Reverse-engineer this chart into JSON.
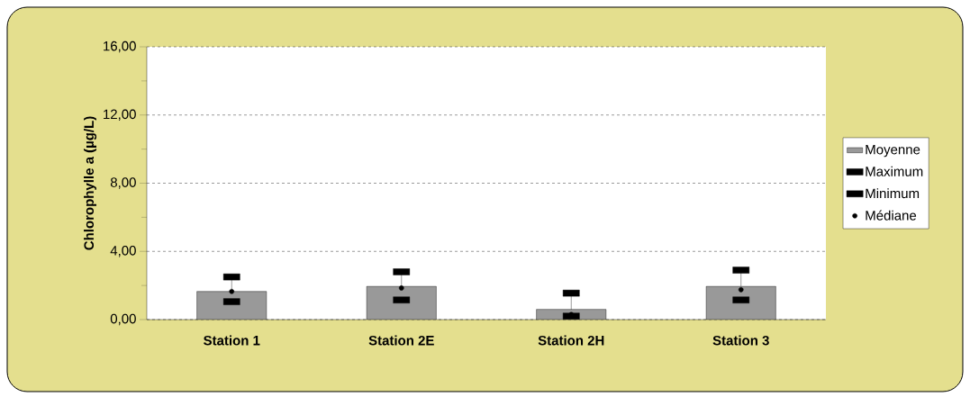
{
  "chart_data": {
    "type": "bar",
    "ylabel": "Chlorophylle a (µg/L)",
    "categories": [
      "Station 1",
      "Station 2E",
      "Station 2H",
      "Station 3"
    ],
    "series": [
      {
        "name": "Moyenne",
        "color": "#999999",
        "values": [
          1.65,
          1.95,
          0.6,
          1.95
        ]
      },
      {
        "name": "Maximum",
        "type": "scatter",
        "marker": "square",
        "color": "#000000",
        "values": [
          2.5,
          2.8,
          1.55,
          2.9
        ]
      },
      {
        "name": "Minimum",
        "type": "scatter",
        "marker": "square",
        "color": "#000000",
        "values": [
          1.05,
          1.15,
          0.2,
          1.15
        ]
      },
      {
        "name": "Médiane",
        "type": "scatter",
        "marker": "circle",
        "color": "#000000",
        "values": [
          1.65,
          1.85,
          0.3,
          1.75
        ]
      }
    ],
    "ylim": [
      0,
      16
    ],
    "yticks": [
      {
        "value": 0,
        "label": "0,00"
      },
      {
        "value": 4,
        "label": "4,00"
      },
      {
        "value": 8,
        "label": "8,00"
      },
      {
        "value": 12,
        "label": "12,00"
      },
      {
        "value": 16,
        "label": "16,00"
      }
    ],
    "grid": "y",
    "legend": "right"
  }
}
